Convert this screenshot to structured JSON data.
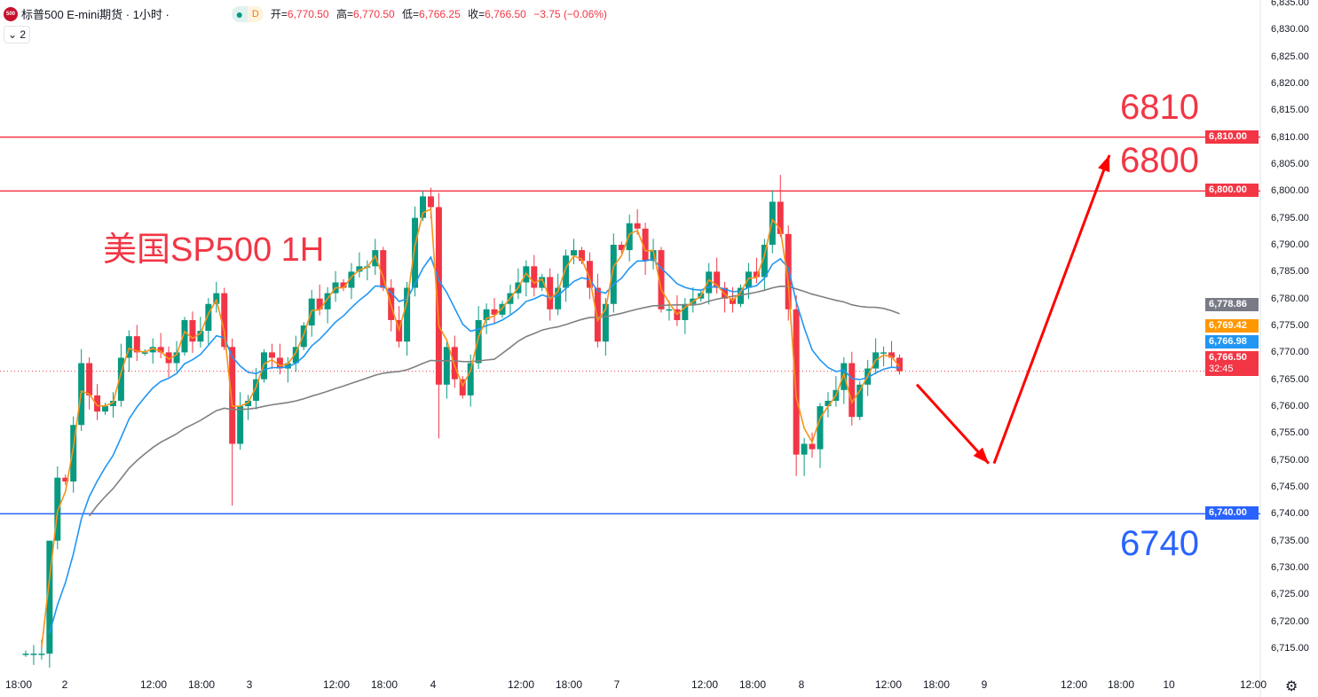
{
  "header": {
    "logo_text": "500",
    "symbol": "标普500 E-mini期货 · 1小时 ·",
    "badge_dot": "●",
    "badge_d": "D",
    "o_label": "开=",
    "o": "6,770.50",
    "h_label": "高=",
    "h": "6,770.50",
    "l_label": "低=",
    "l": "6,766.25",
    "c_label": "收=",
    "c": "6,766.50",
    "change": "−3.75 (−0.06%)",
    "collapse": "⌄ 2"
  },
  "annotations": {
    "title": "美国SP500 1H",
    "level_6810": "6810",
    "level_6800": "6800",
    "level_6740": "6740"
  },
  "colors": {
    "up": "#089981",
    "down": "#f23645",
    "ema_fast": "#f7931a",
    "ema_mid": "#2196f3",
    "ma_slow": "#808080",
    "resistance": "#f23645",
    "support": "#2962ff"
  },
  "chart_data": {
    "type": "candlestick",
    "ylim": [
      6712,
      6836
    ],
    "y_ticks": [
      "6,835.00",
      "6,830.00",
      "6,825.00",
      "6,820.00",
      "6,815.00",
      "6,810.00",
      "6,805.00",
      "6,800.00",
      "6,795.00",
      "6,790.00",
      "6,785.00",
      "6,780.00",
      "6,775.00",
      "6,770.00",
      "6,765.00",
      "6,760.00",
      "6,755.00",
      "6,750.00",
      "6,745.00",
      "6,740.00",
      "6,735.00",
      "6,730.00",
      "6,725.00",
      "6,720.00",
      "6,715.00"
    ],
    "x_ticks": [
      "18:00",
      "2",
      "12:00",
      "18:00",
      "3",
      "12:00",
      "18:00",
      "4",
      "12:00",
      "18:00",
      "7",
      "12:00",
      "18:00",
      "8",
      "12:00",
      "18:00",
      "9",
      "12:00",
      "18:00",
      "10",
      "12:00"
    ],
    "closes": [
      6714,
      6714,
      6714,
      6735,
      6746.7,
      6746,
      6756.5,
      6768,
      6762,
      6759,
      6760,
      6761,
      6769,
      6773,
      6770,
      6770,
      6771,
      6770,
      6768,
      6770,
      6776,
      6772,
      6774,
      6779,
      6781,
      6771,
      6753,
      6760,
      6761,
      6765,
      6770,
      6769,
      6767,
      6768,
      6771,
      6775,
      6780,
      6778,
      6781,
      6783,
      6782,
      6785,
      6786,
      6786,
      6789,
      6782,
      6776,
      6772,
      6782,
      6795,
      6799,
      6797,
      6764,
      6771,
      6765,
      6762,
      6768,
      6776,
      6778,
      6777,
      6779,
      6781,
      6783,
      6786,
      6782,
      6784,
      6778,
      6782,
      6788,
      6789,
      6787,
      6782,
      6772,
      6779,
      6790,
      6789,
      6794,
      6793,
      6787,
      6789,
      6778,
      6778,
      6776,
      6779,
      6780,
      6781,
      6785,
      6782,
      6780,
      6779,
      6782,
      6785,
      6784,
      6790,
      6798,
      6792,
      6778,
      6751,
      6753,
      6752,
      6760,
      6761,
      6763,
      6768,
      6758,
      6764,
      6767,
      6770,
      6770,
      6769,
      6766.5
    ],
    "extreme_highs": {
      "3": 6729,
      "50": 6800,
      "95": 6803,
      "25": 6782
    },
    "extreme_lows": {
      "26": 6741.5,
      "52": 6754,
      "97": 6747,
      "98": 6747,
      "100": 6748.5
    },
    "hlines": [
      {
        "value": 6810,
        "label": "6,810.00",
        "color": "#f23645"
      },
      {
        "value": 6800,
        "label": "6,800.00",
        "color": "#f23645"
      },
      {
        "value": 6740,
        "label": "6,740.00",
        "color": "#2962ff"
      }
    ],
    "price_labels": [
      {
        "value": 6778.86,
        "label": "6,778.86",
        "color": "#787b86"
      },
      {
        "value": 6769.42,
        "label": "6,769.42",
        "color": "#ff9800"
      },
      {
        "value": 6766.98,
        "label": "6,766.98",
        "color": "#2196f3"
      },
      {
        "value": 6766.5,
        "label": "6,766.50",
        "color": "#f23645",
        "countdown": "32:45"
      }
    ],
    "forecast_path": [
      6766,
      6751,
      6806
    ]
  },
  "footer": {
    "settings_icon": "gear-icon",
    "gear": "⚙"
  }
}
